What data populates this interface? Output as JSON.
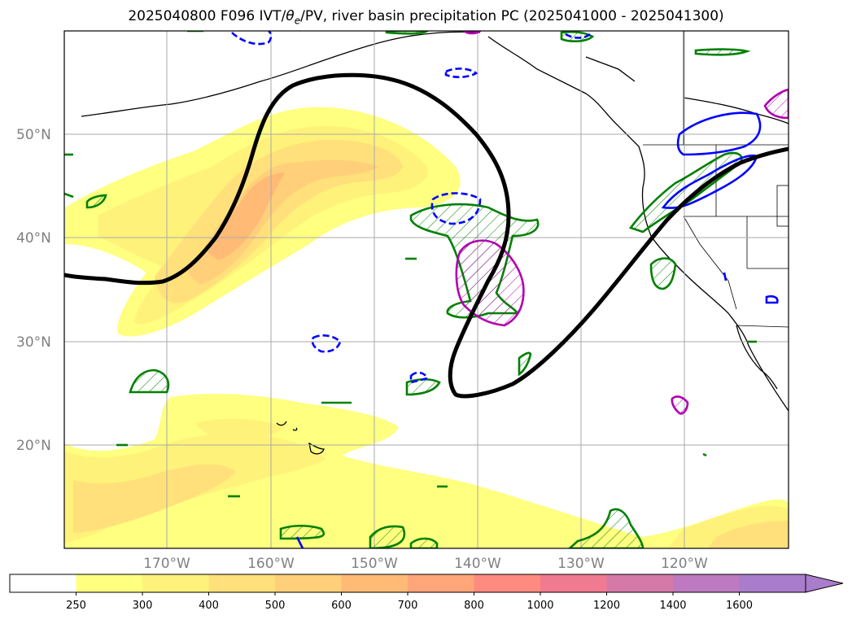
{
  "title": {
    "prefix": "2025040800 F096 IVT/",
    "theta": "θ",
    "theta_sub": "e",
    "suffix": "/PV, river basin precipitation PC (2025041000 - 2025041300)"
  },
  "latitude_labels": [
    "50°N",
    "40°N",
    "30°N",
    "20°N"
  ],
  "longitude_labels": [
    "170°W",
    "160°W",
    "150°W",
    "140°W",
    "130°W",
    "120°W"
  ],
  "colorbar": {
    "levels": [
      "250",
      "300",
      "400",
      "500",
      "600",
      "700",
      "800",
      "1000",
      "1200",
      "1400",
      "1600"
    ],
    "colors": [
      "#ffffff",
      "#ffff80",
      "#fff27a",
      "#ffe07a",
      "#ffcf7a",
      "#ffba76",
      "#ffa57a",
      "#ff8a80",
      "#f07a90",
      "#d57aa8",
      "#bd7ac0",
      "#a97ccc"
    ],
    "extend": "max"
  },
  "contour_colors": {
    "thick_line": "#000000",
    "green_contour": "#008000",
    "blue_contour": "#0000ff",
    "magenta_contour": "#b000b0"
  }
}
